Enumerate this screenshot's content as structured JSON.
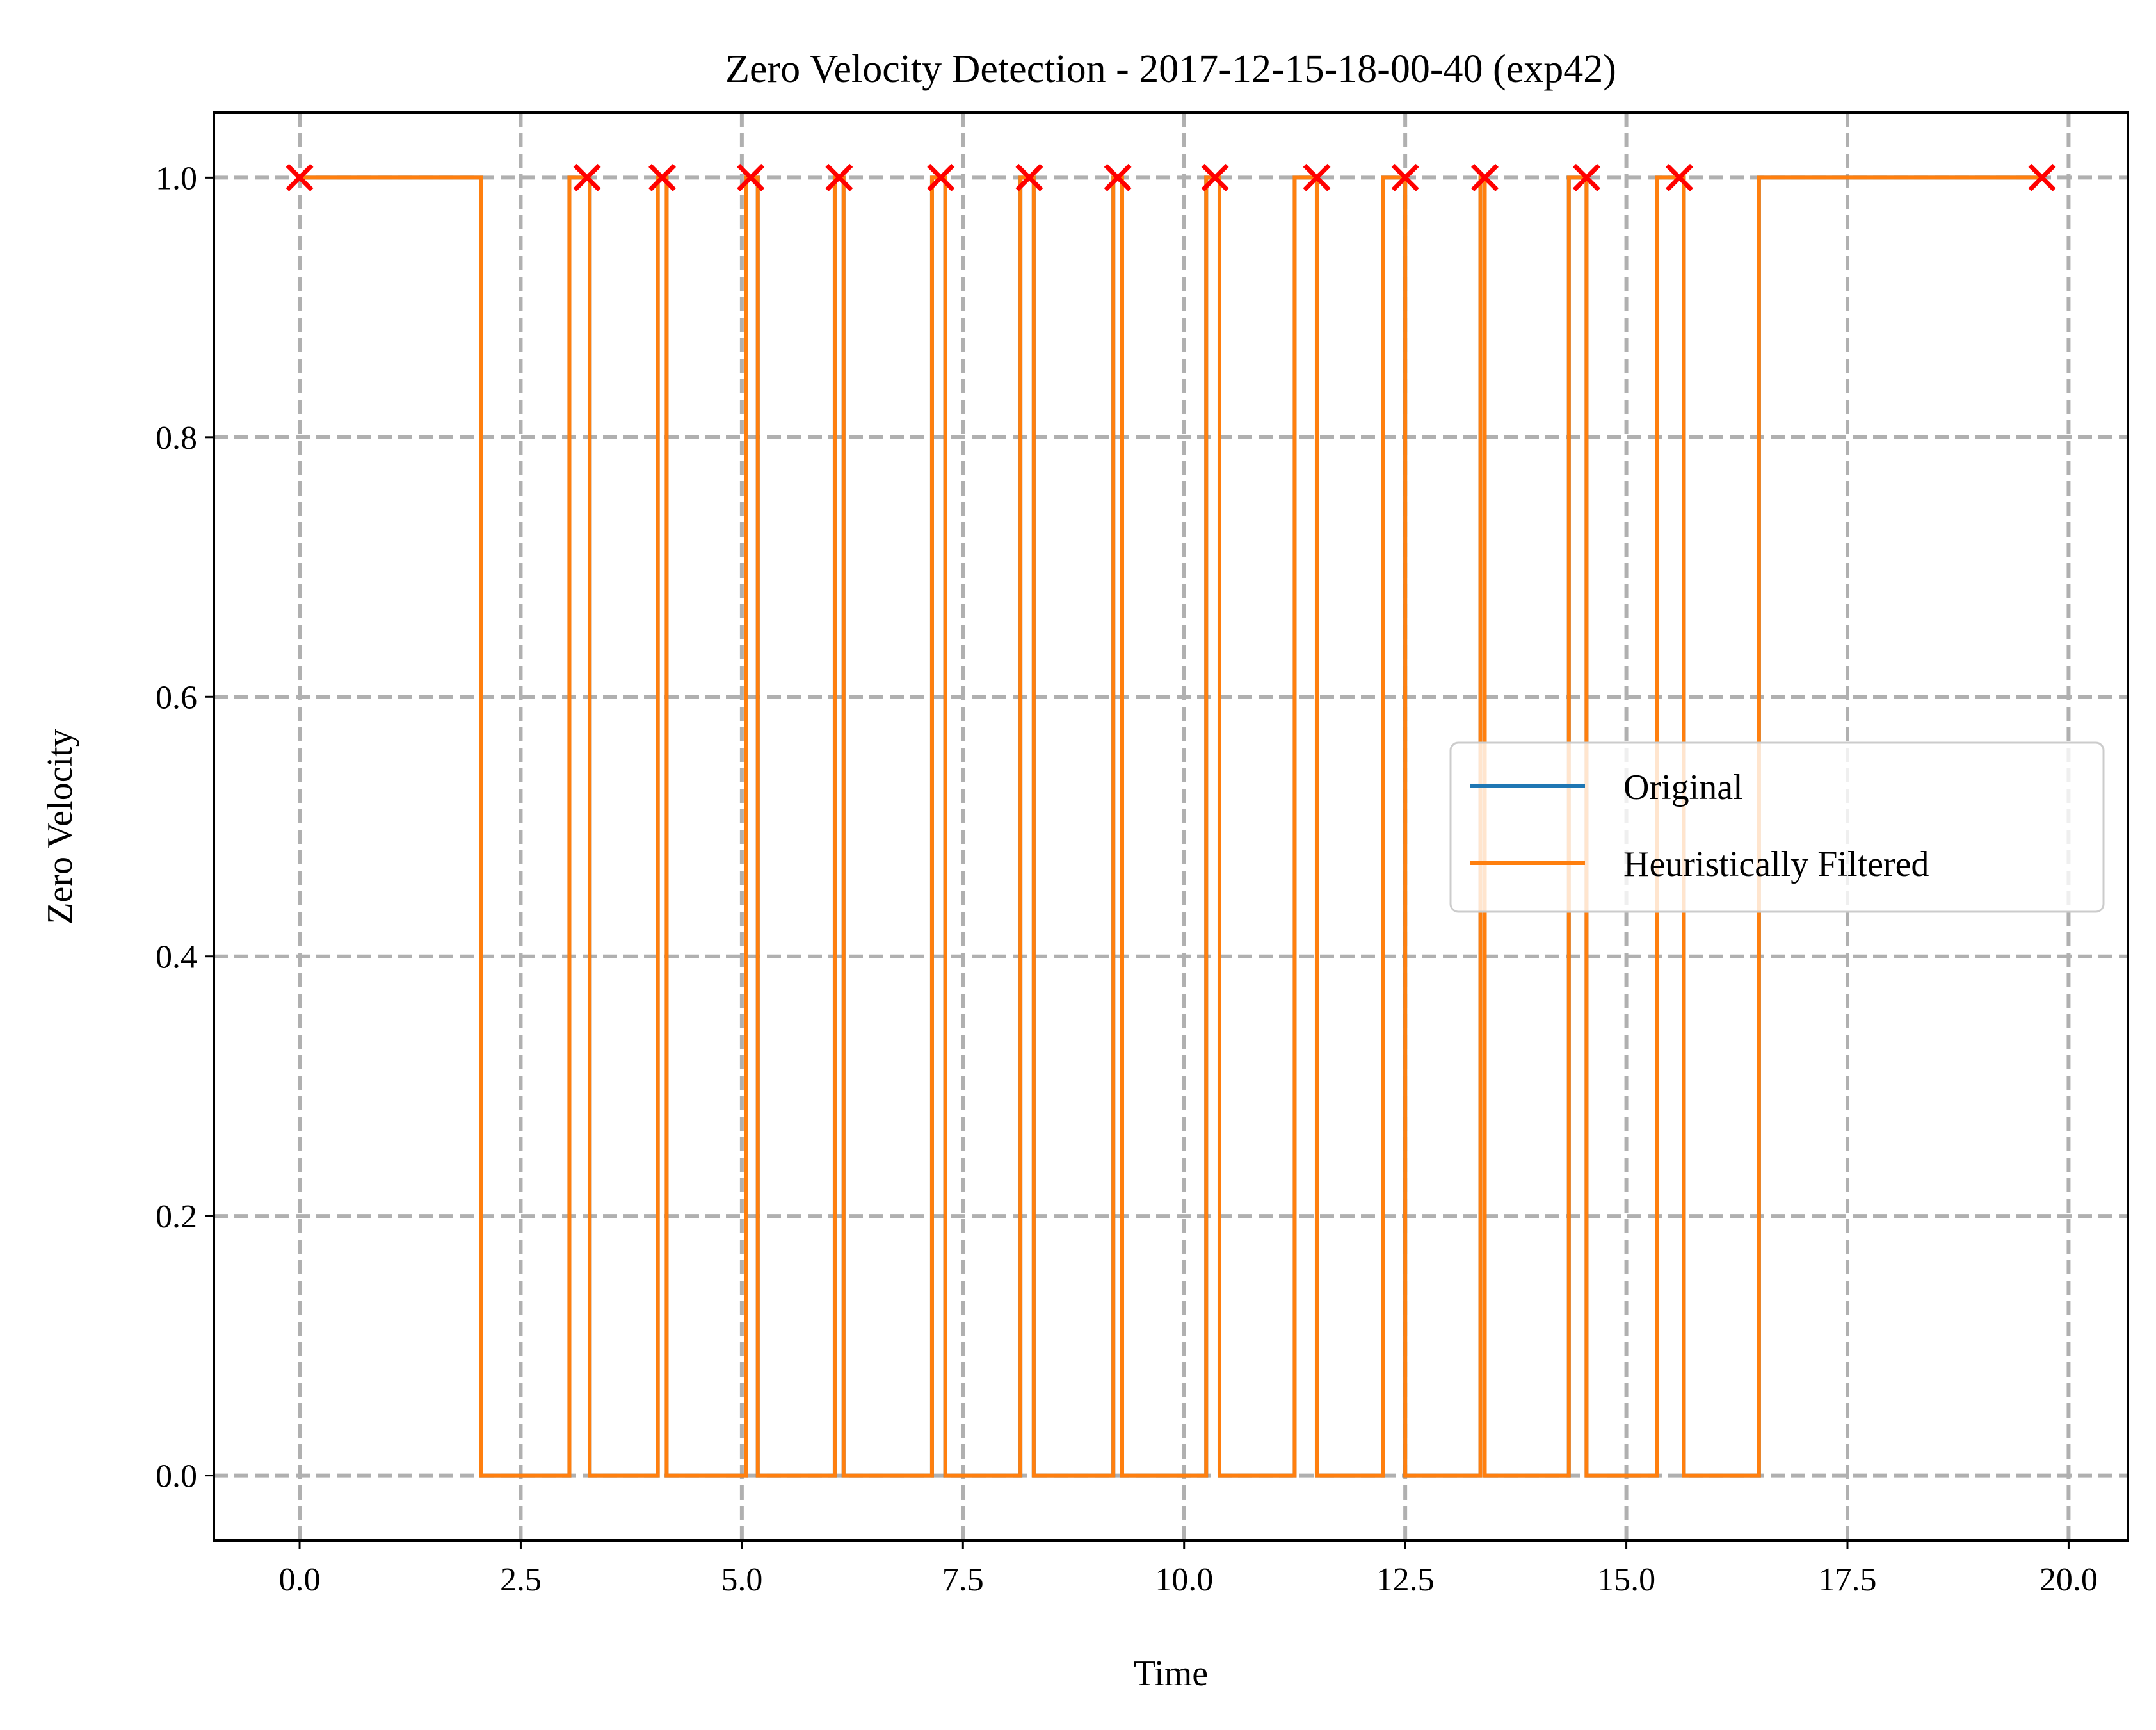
{
  "chart_data": {
    "type": "line",
    "title": "Zero Velocity Detection - 2017-12-15-18-00-40 (exp42)",
    "xlabel": "Time",
    "ylabel": "Zero Velocity",
    "xlim": [
      -0.97,
      20.67
    ],
    "ylim": [
      -0.05,
      1.05
    ],
    "xticks": [
      0.0,
      2.5,
      5.0,
      7.5,
      10.0,
      12.5,
      15.0,
      17.5,
      20.0
    ],
    "xtick_labels": [
      "0.0",
      "2.5",
      "5.0",
      "7.5",
      "10.0",
      "12.5",
      "15.0",
      "17.5",
      "20.0"
    ],
    "yticks": [
      0.0,
      0.2,
      0.4,
      0.6,
      0.8,
      1.0
    ],
    "ytick_labels": [
      "0.0",
      "0.2",
      "0.4",
      "0.6",
      "0.8",
      "1.0"
    ],
    "grid": true,
    "grid_style": "dashed",
    "legend_position": "center-right",
    "series": [
      {
        "name": "Original",
        "color": "#1f77b4",
        "step": "post",
        "x": [
          0.0,
          2.05,
          3.05,
          3.28,
          4.05,
          4.15,
          5.05,
          5.18,
          6.05,
          6.15,
          7.15,
          7.3,
          8.15,
          8.3,
          9.2,
          9.3,
          10.25,
          10.4,
          11.25,
          11.5,
          12.25,
          12.5,
          13.35,
          13.4,
          14.35,
          14.55,
          15.35,
          15.65,
          16.5,
          19.7
        ],
        "values": [
          1,
          0,
          1,
          0,
          1,
          0,
          1,
          0,
          1,
          0,
          1,
          0,
          1,
          0,
          1,
          0,
          1,
          0,
          1,
          0,
          1,
          0,
          1,
          0,
          1,
          0,
          1,
          0,
          1,
          1
        ]
      },
      {
        "name": "Heuristically Filtered",
        "color": "#ff7f0e",
        "step": "post",
        "x": [
          0.0,
          2.05,
          3.05,
          3.28,
          4.05,
          4.15,
          5.05,
          5.18,
          6.05,
          6.15,
          7.15,
          7.3,
          8.15,
          8.3,
          9.2,
          9.3,
          10.25,
          10.4,
          11.25,
          11.5,
          12.25,
          12.5,
          13.35,
          13.4,
          14.35,
          14.55,
          15.35,
          15.65,
          16.5,
          19.7
        ],
        "values": [
          1,
          0,
          1,
          0,
          1,
          0,
          1,
          0,
          1,
          0,
          1,
          0,
          1,
          0,
          1,
          0,
          1,
          0,
          1,
          0,
          1,
          0,
          1,
          0,
          1,
          0,
          1,
          0,
          1,
          1
        ]
      }
    ],
    "markers": {
      "symbol": "x",
      "color": "#ff0000",
      "x": [
        0.0,
        3.25,
        4.1,
        5.1,
        6.1,
        7.25,
        8.25,
        9.25,
        10.35,
        11.5,
        12.5,
        13.4,
        14.55,
        15.6,
        19.7
      ],
      "y": [
        1,
        1,
        1,
        1,
        1,
        1,
        1,
        1,
        1,
        1,
        1,
        1,
        1,
        1,
        1
      ]
    }
  }
}
